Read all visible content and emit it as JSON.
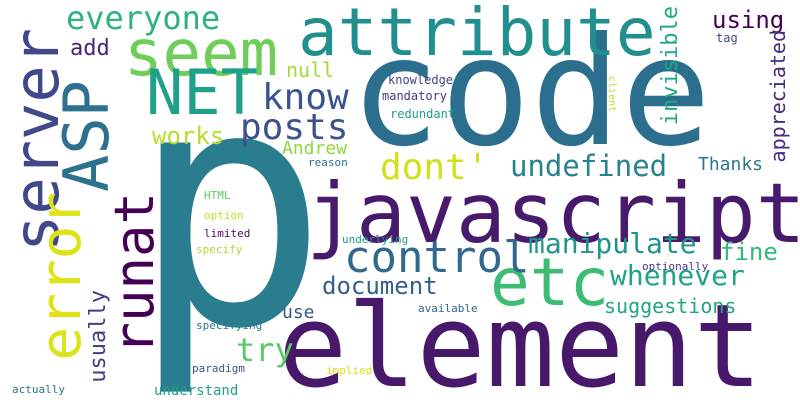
{
  "word_cloud": {
    "words": [
      {
        "id": "p",
        "text": "p"
      },
      {
        "id": "code",
        "text": "code"
      },
      {
        "id": "element",
        "text": "element"
      },
      {
        "id": "javascript",
        "text": "javascript"
      },
      {
        "id": "server",
        "text": "server"
      },
      {
        "id": "attribute",
        "text": "attribute"
      },
      {
        "id": "seem",
        "text": "seem"
      },
      {
        "id": "asp",
        "text": "ASP"
      },
      {
        "id": "net",
        "text": "NET"
      },
      {
        "id": "etc",
        "text": "etc"
      },
      {
        "id": "error",
        "text": "error"
      },
      {
        "id": "runat",
        "text": "runat"
      },
      {
        "id": "everyone",
        "text": "everyone"
      },
      {
        "id": "control",
        "text": "control"
      },
      {
        "id": "know",
        "text": "know"
      },
      {
        "id": "posts",
        "text": "posts"
      },
      {
        "id": "dont",
        "text": "dont'"
      },
      {
        "id": "undefined",
        "text": "undefined"
      },
      {
        "id": "manipulate",
        "text": "manipulate"
      },
      {
        "id": "whenever",
        "text": "whenever"
      },
      {
        "id": "document",
        "text": "document"
      },
      {
        "id": "try",
        "text": "try"
      },
      {
        "id": "fine",
        "text": "fine"
      },
      {
        "id": "suggestions",
        "text": "suggestions"
      },
      {
        "id": "works",
        "text": "works"
      },
      {
        "id": "usually",
        "text": "usually"
      },
      {
        "id": "using",
        "text": "using"
      },
      {
        "id": "invisible",
        "text": "invisible"
      },
      {
        "id": "appreciated",
        "text": "appreciated"
      },
      {
        "id": "null",
        "text": "null"
      },
      {
        "id": "add",
        "text": "add"
      },
      {
        "id": "andrew",
        "text": "Andrew"
      },
      {
        "id": "thanks",
        "text": "Thanks"
      },
      {
        "id": "use",
        "text": "use"
      },
      {
        "id": "tag",
        "text": "tag"
      },
      {
        "id": "knowledge",
        "text": "knowledge"
      },
      {
        "id": "mandatory",
        "text": "mandatory"
      },
      {
        "id": "redundant",
        "text": "redundant"
      },
      {
        "id": "reason",
        "text": "reason"
      },
      {
        "id": "html",
        "text": "HTML"
      },
      {
        "id": "option",
        "text": "option"
      },
      {
        "id": "limited",
        "text": "limited"
      },
      {
        "id": "specify",
        "text": "specify"
      },
      {
        "id": "underlying",
        "text": "underlying"
      },
      {
        "id": "optionally",
        "text": "optionally"
      },
      {
        "id": "available",
        "text": "available"
      },
      {
        "id": "specifying",
        "text": "specifying"
      },
      {
        "id": "paradigm",
        "text": "paradigm"
      },
      {
        "id": "implied",
        "text": "implied"
      },
      {
        "id": "understand",
        "text": "understand"
      },
      {
        "id": "actually",
        "text": "actually"
      },
      {
        "id": "client",
        "text": "client"
      }
    ]
  }
}
